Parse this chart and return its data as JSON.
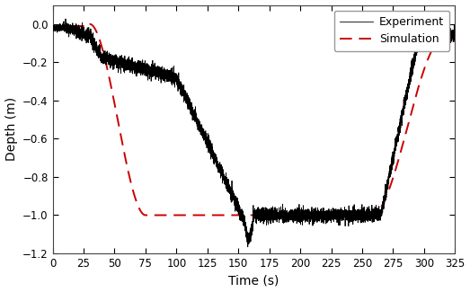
{
  "title": "",
  "xlabel": "Time (s)",
  "ylabel": "Depth (m)",
  "xlim": [
    0,
    325
  ],
  "ylim": [
    -1.2,
    0.1
  ],
  "xticks": [
    0,
    25,
    50,
    75,
    100,
    125,
    150,
    175,
    200,
    225,
    250,
    275,
    300,
    325
  ],
  "yticks": [
    0.0,
    -0.2,
    -0.4,
    -0.6,
    -0.8,
    -1.0,
    -1.2
  ],
  "legend_labels": [
    "Experiment",
    "Simulation"
  ],
  "exp_color": "#000000",
  "sim_color": "#cc0000",
  "background_color": "#ffffff",
  "noise_amplitude": 0.018,
  "noise_seed": 42,
  "figsize": [
    5.23,
    3.25
  ],
  "dpi": 100
}
